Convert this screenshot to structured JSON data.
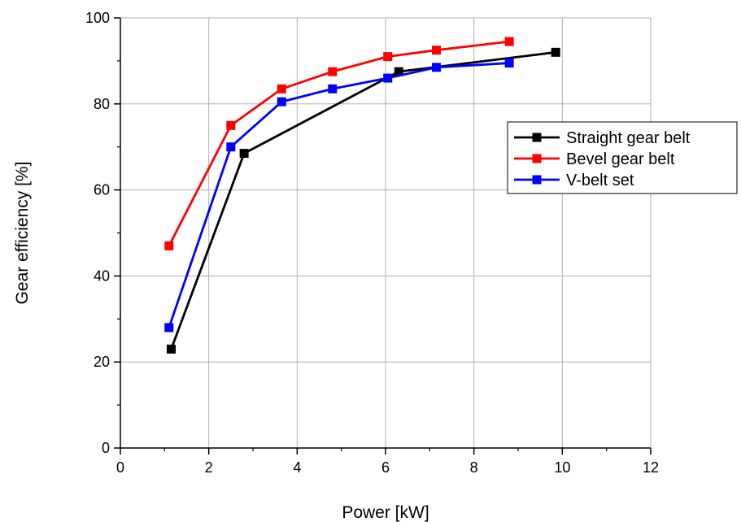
{
  "chart_data": {
    "type": "line",
    "title": "",
    "xlabel": "Power [kW]",
    "ylabel": "Gear efficiency [%]",
    "xlim": [
      0,
      12
    ],
    "ylim": [
      0,
      100
    ],
    "xticks": [
      0,
      2,
      4,
      6,
      8,
      10,
      12
    ],
    "yticks": [
      0,
      20,
      40,
      60,
      80,
      100
    ],
    "grid": true,
    "legend_position": "right",
    "series": [
      {
        "name": "Straight gear belt",
        "color": "#000000",
        "marker": "square",
        "x": [
          1.15,
          2.8,
          6.3,
          9.85
        ],
        "y": [
          23,
          68.5,
          87.5,
          92
        ]
      },
      {
        "name": "Bevel gear belt",
        "color": "#ff0000",
        "marker": "square",
        "x": [
          1.1,
          2.5,
          3.65,
          4.8,
          6.05,
          7.15,
          8.8
        ],
        "y": [
          47,
          75,
          83.5,
          87.5,
          91,
          92.5,
          94.5
        ]
      },
      {
        "name": "V-belt set",
        "color": "#0000ff",
        "marker": "square",
        "x": [
          1.1,
          2.5,
          3.65,
          4.8,
          6.05,
          7.15,
          8.8
        ],
        "y": [
          28,
          70,
          80.5,
          83.5,
          86,
          88.5,
          89.5
        ]
      }
    ]
  }
}
